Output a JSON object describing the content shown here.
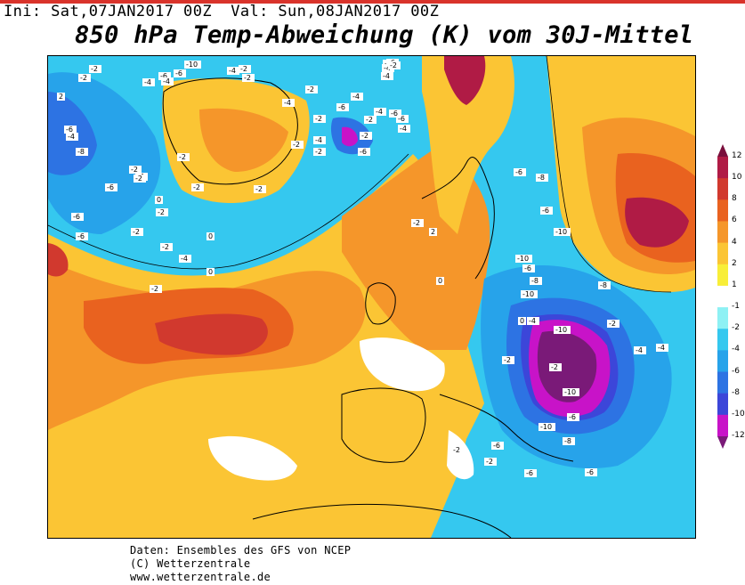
{
  "header": {
    "init_text": "Ini: Sat,07JAN2017 00Z  Val: Sun,08JAN2017 00Z",
    "title": "850 hPa Temp-Abweichung (K) vom 30J-Mittel"
  },
  "legend": {
    "levels": [
      "12",
      "10",
      "8",
      "6",
      "4",
      "2",
      "1",
      "-1",
      "-2",
      "-4",
      "-6",
      "-8",
      "-10",
      "-12"
    ],
    "colors": {
      "c12": "#7a0f3c",
      "c10": "#b01b45",
      "c8": "#d1392e",
      "c6": "#e9621f",
      "c4": "#f5962a",
      "c2": "#fbc534",
      "c1": "#f8ee38",
      "c0": "#ffffff",
      "cm1": "#8ef1f4",
      "cm2": "#35c8ef",
      "cm4": "#27a3ea",
      "cm6": "#2d73e3",
      "cm8": "#3c46d9",
      "cm10": "#c813c8",
      "cm12": "#7a1a78"
    }
  },
  "map_labels": [
    "-10",
    "-2",
    "-2",
    "-6",
    "-4",
    "-6",
    "-4",
    "-4",
    "-2",
    "-2",
    "-6",
    "-4",
    "-8",
    "-6",
    "-6",
    "-2",
    "-4",
    "-6",
    "-2",
    "-4",
    "-2",
    "0",
    "-2",
    "-2",
    "-2",
    "-4",
    "-6",
    "-4",
    "-2",
    "-4",
    "-6",
    "-4",
    "-6",
    "-4",
    "-2",
    "-4",
    "-6",
    "-2",
    "-6",
    "-2",
    "-4",
    "-2",
    "-6",
    "-8",
    "-6",
    "-10",
    "-6",
    "-4",
    "-10",
    "-8",
    "-10",
    "-8",
    "-10",
    "-10",
    "-6",
    "-6",
    "-8",
    "-10",
    "-4",
    "-2",
    "-2",
    "-6",
    "-6",
    "-4",
    "-2",
    "0",
    "-2",
    "-2",
    "0",
    "2",
    "-2",
    "0",
    "-2",
    "0",
    "-2",
    "-2",
    "-2",
    "-2",
    "-2",
    "2"
  ],
  "footer": {
    "line1": "Daten: Ensembles des GFS von NCEP",
    "line2": "(C) Wetterzentrale",
    "line3": "www.wetterzentrale.de"
  }
}
